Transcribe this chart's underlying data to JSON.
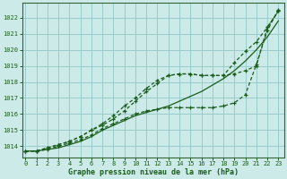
{
  "title": "Graphe pression niveau de la mer (hPa)",
  "xlabel_ticks": [
    0,
    1,
    2,
    3,
    4,
    5,
    6,
    7,
    8,
    9,
    10,
    11,
    12,
    13,
    14,
    15,
    16,
    17,
    18,
    19,
    20,
    21,
    22,
    23
  ],
  "yticks": [
    1014,
    1015,
    1016,
    1017,
    1018,
    1019,
    1020,
    1021,
    1022
  ],
  "ylim": [
    1013.3,
    1022.9
  ],
  "xlim": [
    -0.3,
    23.5
  ],
  "bg_color": "#cceae8",
  "grid_color": "#99cccc",
  "line_color": "#1a5c1a",
  "curves": [
    [
      1013.7,
      1013.7,
      1013.8,
      1014.0,
      1014.2,
      1014.4,
      1014.7,
      1015.1,
      1015.4,
      1015.7,
      1016.0,
      1016.2,
      1016.3,
      1016.4,
      1016.4,
      1016.4,
      1016.4,
      1016.4,
      1016.5,
      1016.7,
      1017.2,
      1019.1,
      1021.2,
      1022.5
    ],
    [
      1013.7,
      1013.7,
      1013.9,
      1014.1,
      1014.3,
      1014.6,
      1015.0,
      1015.4,
      1015.9,
      1016.5,
      1017.0,
      1017.6,
      1018.1,
      1018.4,
      1018.5,
      1018.5,
      1018.4,
      1018.4,
      1018.4,
      1018.5,
      1018.7,
      1019.0,
      1021.4,
      1022.4
    ],
    [
      1013.7,
      1013.7,
      1013.9,
      1014.1,
      1014.3,
      1014.6,
      1015.0,
      1015.3,
      1015.7,
      1016.2,
      1016.8,
      1017.4,
      1017.9,
      1018.4,
      1018.5,
      1018.5,
      1018.4,
      1018.4,
      1018.4,
      1019.2,
      1019.9,
      1020.5,
      1021.4,
      1022.4
    ]
  ],
  "curve_no_marker": [
    1013.7,
    1013.7,
    1013.8,
    1013.9,
    1014.1,
    1014.3,
    1014.6,
    1015.0,
    1015.3,
    1015.6,
    1015.9,
    1016.1,
    1016.3,
    1016.5,
    1016.8,
    1017.1,
    1017.4,
    1017.8,
    1018.2,
    1018.7,
    1019.3,
    1020.0,
    1020.8,
    1021.8
  ],
  "marker": "+",
  "markersize": 3.5,
  "linewidth": 0.9
}
